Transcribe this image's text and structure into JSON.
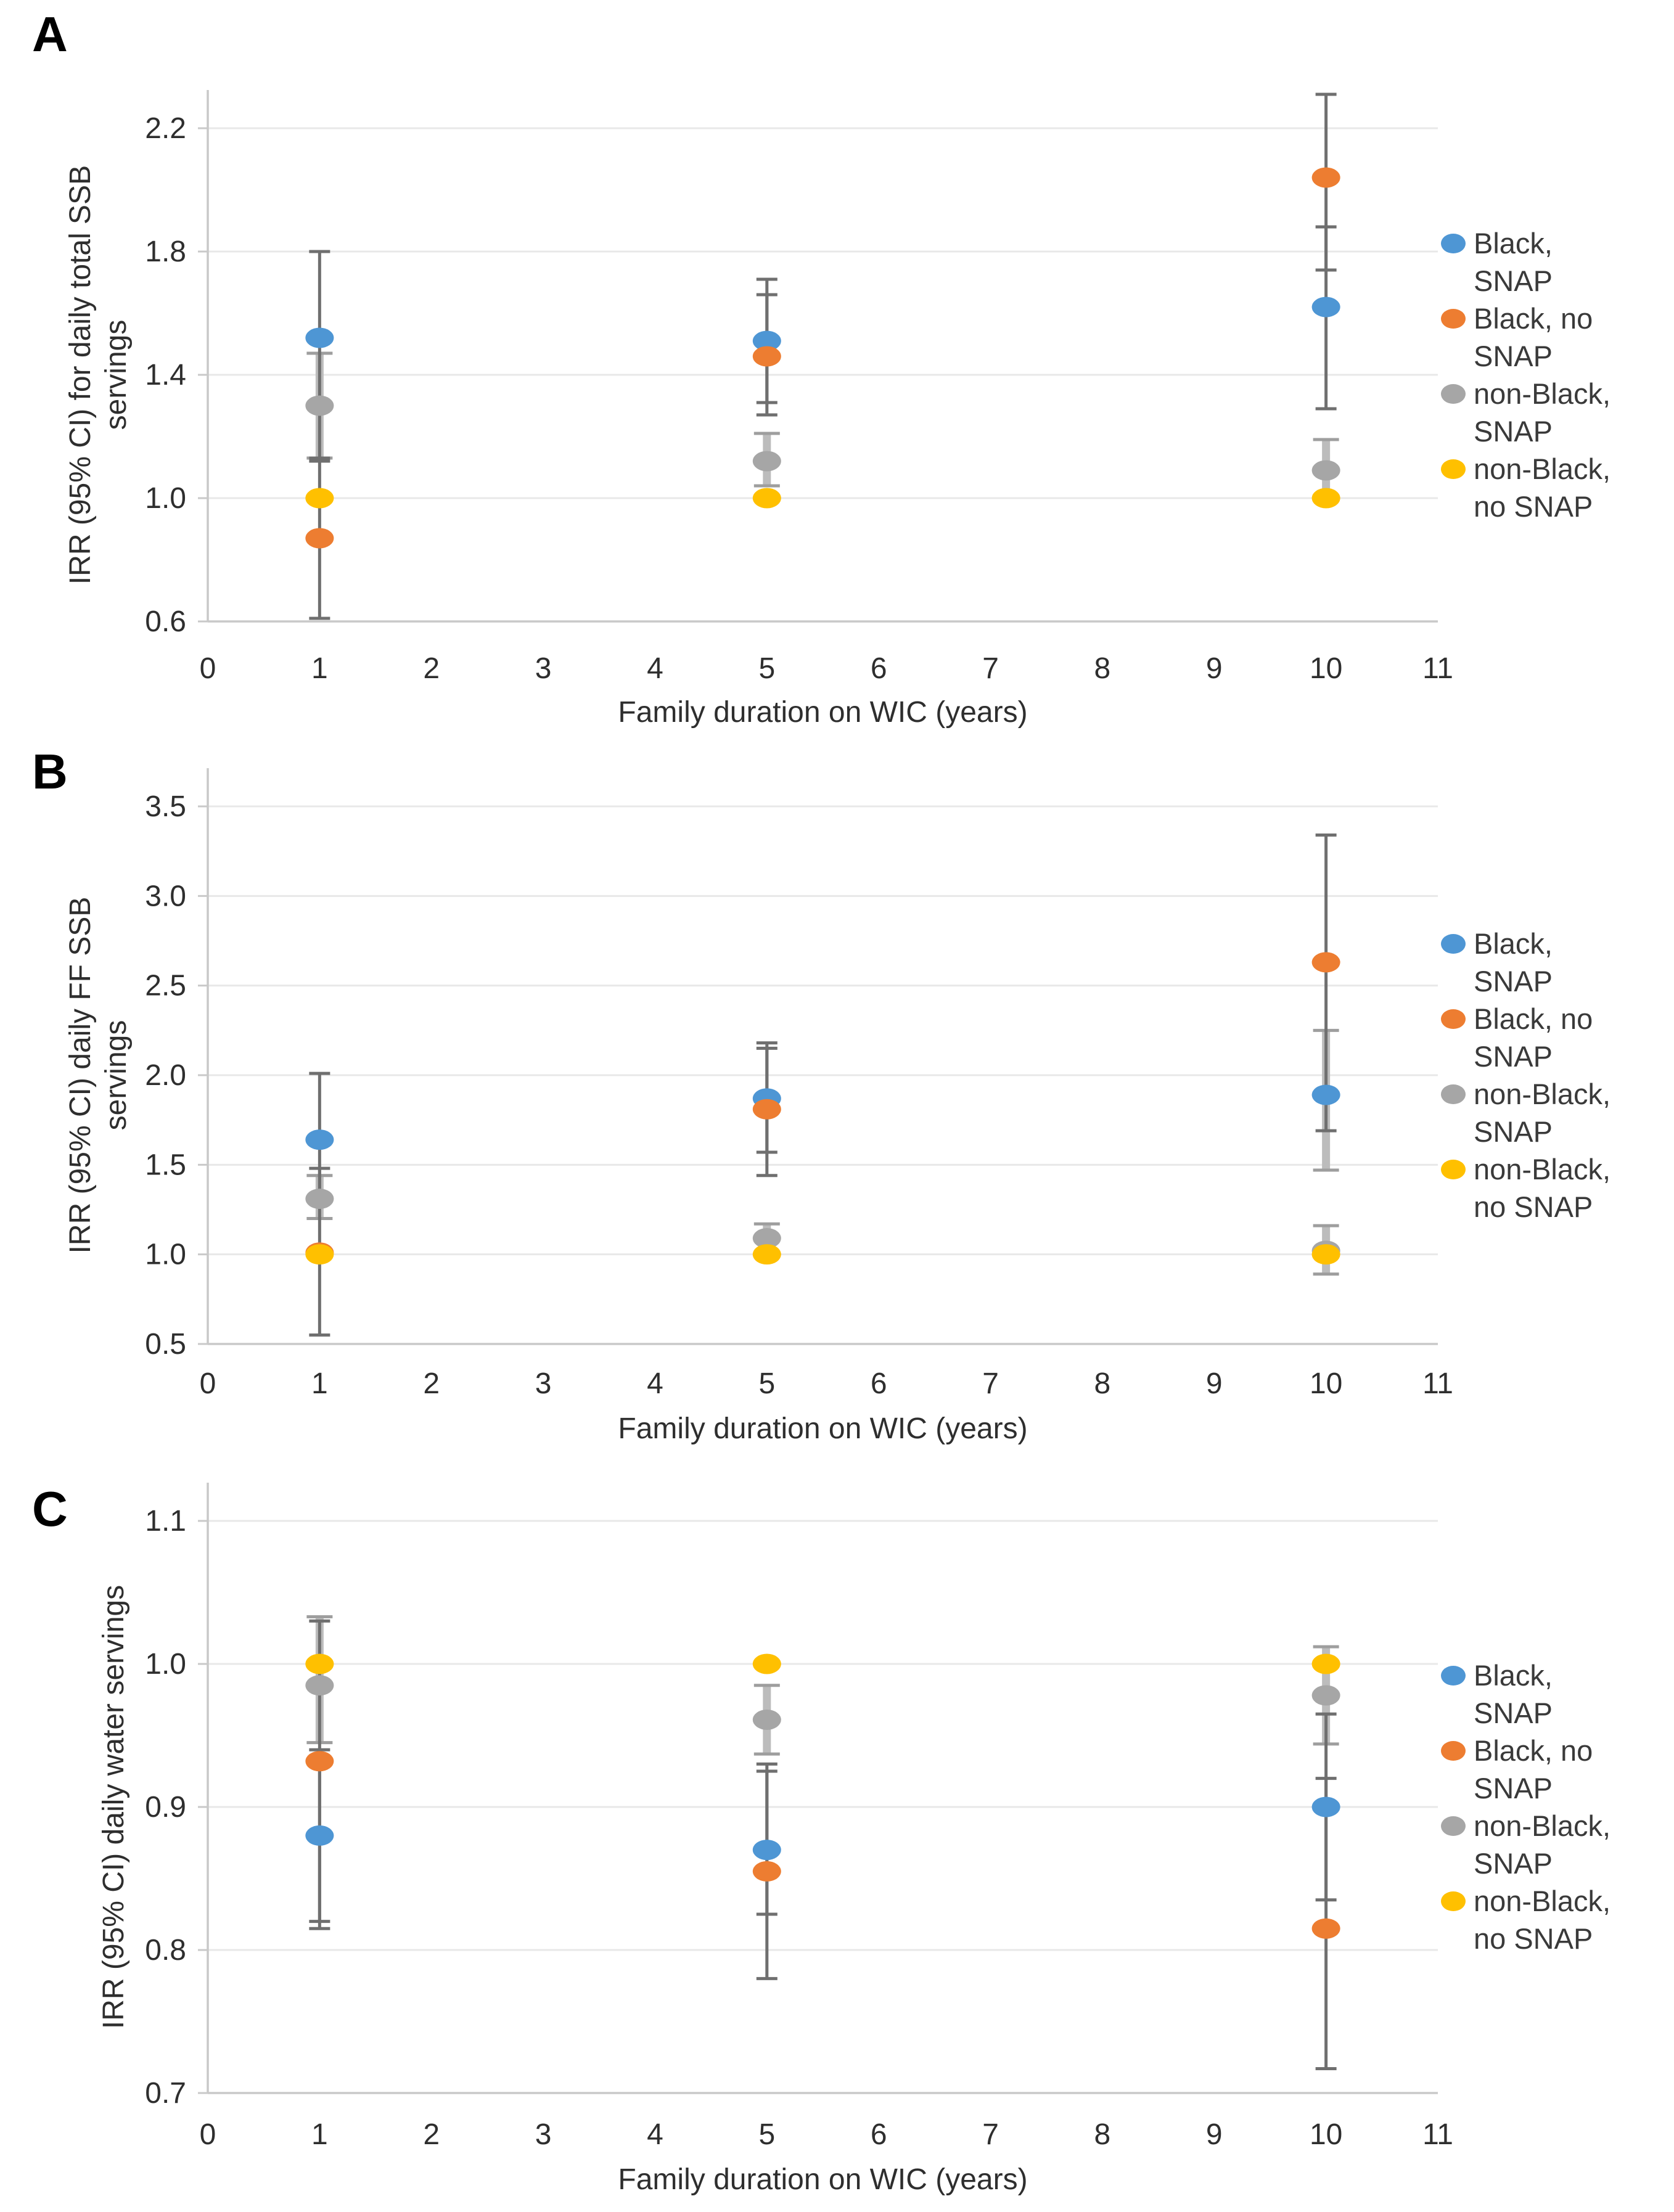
{
  "figure": {
    "x_axis_title": "Family duration on WIC (years)",
    "x_tick_labels": [
      "0",
      "1",
      "2",
      "3",
      "4",
      "5",
      "6",
      "7",
      "8",
      "9",
      "10",
      "11"
    ],
    "style_colors": {
      "grid": "#e8e8e8",
      "axis": "#c9c9c9",
      "tick_mark": "#c9c9c9",
      "error_dark": "#6f6f6f",
      "error_light": "#bcbcbc",
      "error_light_cap": "#9e9e9e",
      "text": "#2e2e2e"
    },
    "legend": {
      "entries": [
        {
          "name": "Black, SNAP",
          "color": "#4e96d4",
          "lines": [
            "Black,",
            "SNAP"
          ]
        },
        {
          "name": "Black, no SNAP",
          "color": "#ed7d31",
          "lines": [
            "Black, no",
            "SNAP"
          ]
        },
        {
          "name": "non-Black, SNAP",
          "color": "#a6a6a6",
          "lines": [
            "non-Black,",
            "SNAP"
          ]
        },
        {
          "name": "non-Black, no SNAP",
          "color": "#ffc000",
          "lines": [
            "non-Black,",
            "no SNAP"
          ]
        }
      ]
    }
  },
  "chart_data": [
    {
      "type": "scatter",
      "panel_label": "A",
      "ylabel": "IRR (95% CI) for daily total SSB servings",
      "xlabel": "Family duration on WIC (years)",
      "xlim": [
        0,
        11
      ],
      "ylim": [
        0.6,
        2.2
      ],
      "y_tick_labels": [
        "0.6",
        "1.0",
        "1.4",
        "1.8",
        "2.2"
      ],
      "y_ticks": [
        0.6,
        1.0,
        1.4,
        1.8,
        2.2
      ],
      "x_points": [
        1,
        5,
        10
      ],
      "series": [
        {
          "name": "Black, SNAP",
          "color": "#4e96d4",
          "ci_style": "thin",
          "points": [
            {
              "x": 1,
              "y": 1.52,
              "lo": 1.13,
              "hi": 1.8
            },
            {
              "x": 5,
              "y": 1.51,
              "lo": 1.31,
              "hi": 1.71
            },
            {
              "x": 10,
              "y": 1.62,
              "lo": 1.29,
              "hi": 1.88
            }
          ]
        },
        {
          "name": "Black, no SNAP",
          "color": "#ed7d31",
          "ci_style": "thin",
          "points": [
            {
              "x": 1,
              "y": 0.87,
              "lo": 0.61,
              "hi": 1.12
            },
            {
              "x": 5,
              "y": 1.46,
              "lo": 1.27,
              "hi": 1.66
            },
            {
              "x": 10,
              "y": 2.04,
              "lo": 1.74,
              "hi": 2.31
            }
          ]
        },
        {
          "name": "non-Black, SNAP",
          "color": "#a6a6a6",
          "ci_style": "thick",
          "points": [
            {
              "x": 1,
              "y": 1.3,
              "lo": 1.13,
              "hi": 1.47
            },
            {
              "x": 5,
              "y": 1.12,
              "lo": 1.04,
              "hi": 1.21
            },
            {
              "x": 10,
              "y": 1.09,
              "lo": 1.0,
              "hi": 1.19
            }
          ]
        },
        {
          "name": "non-Black, no SNAP",
          "color": "#ffc000",
          "ci_style": "none",
          "points": [
            {
              "x": 1,
              "y": 1.0
            },
            {
              "x": 5,
              "y": 1.0
            },
            {
              "x": 10,
              "y": 1.0
            }
          ]
        }
      ]
    },
    {
      "type": "scatter",
      "panel_label": "B",
      "ylabel": "IRR (95% CI) daily FF SSB servings",
      "xlabel": "Family duration on WIC (years)",
      "xlim": [
        0,
        11
      ],
      "ylim": [
        0.5,
        3.5
      ],
      "y_tick_labels": [
        "0.5",
        "1.0",
        "1.5",
        "2.0",
        "2.5",
        "3.0",
        "3.5"
      ],
      "y_ticks": [
        0.5,
        1.0,
        1.5,
        2.0,
        2.5,
        3.0,
        3.5
      ],
      "x_points": [
        1,
        5,
        10
      ],
      "series": [
        {
          "name": "Black, SNAP",
          "color": "#4e96d4",
          "ci_style": "thin",
          "points": [
            {
              "x": 1,
              "y": 1.64,
              "lo": 1.34,
              "hi": 2.01
            },
            {
              "x": 5,
              "y": 1.87,
              "lo": 1.57,
              "hi": 2.18
            },
            {
              "x": 10,
              "y": 1.89,
              "lo": 1.47,
              "hi": 2.25,
              "thick": true
            }
          ]
        },
        {
          "name": "Black, no SNAP",
          "color": "#ed7d31",
          "ci_style": "thin",
          "points": [
            {
              "x": 1,
              "y": 1.01,
              "lo": 0.55,
              "hi": 1.48
            },
            {
              "x": 5,
              "y": 1.81,
              "lo": 1.44,
              "hi": 2.15
            },
            {
              "x": 10,
              "y": 2.63,
              "lo": 1.69,
              "hi": 3.34
            }
          ]
        },
        {
          "name": "non-Black, SNAP",
          "color": "#a6a6a6",
          "ci_style": "thick",
          "points": [
            {
              "x": 1,
              "y": 1.31,
              "lo": 1.2,
              "hi": 1.44
            },
            {
              "x": 5,
              "y": 1.09,
              "lo": 1.01,
              "hi": 1.17
            },
            {
              "x": 10,
              "y": 1.02,
              "lo": 0.89,
              "hi": 1.16
            }
          ]
        },
        {
          "name": "non-Black, no SNAP",
          "color": "#ffc000",
          "ci_style": "none",
          "points": [
            {
              "x": 1,
              "y": 1.0
            },
            {
              "x": 5,
              "y": 1.0
            },
            {
              "x": 10,
              "y": 1.0
            }
          ]
        }
      ]
    },
    {
      "type": "scatter",
      "panel_label": "C",
      "ylabel": "IRR (95% CI) daily water servings",
      "xlabel": "Family duration on WIC (years)",
      "xlim": [
        0,
        11
      ],
      "ylim": [
        0.7,
        1.1
      ],
      "y_tick_labels": [
        "0.7",
        "0.8",
        "0.9",
        "1.0",
        "1.1"
      ],
      "y_ticks": [
        0.7,
        0.8,
        0.9,
        1.0,
        1.1
      ],
      "x_points": [
        1,
        5,
        10
      ],
      "series": [
        {
          "name": "Black, SNAP",
          "color": "#4e96d4",
          "ci_style": "thin",
          "points": [
            {
              "x": 1,
              "y": 0.88,
              "lo": 0.82,
              "hi": 0.94
            },
            {
              "x": 5,
              "y": 0.87,
              "lo": 0.825,
              "hi": 0.925
            },
            {
              "x": 10,
              "y": 0.9,
              "lo": 0.835,
              "hi": 0.965
            }
          ]
        },
        {
          "name": "Black, no SNAP",
          "color": "#ed7d31",
          "ci_style": "thin",
          "points": [
            {
              "x": 1,
              "y": 0.932,
              "lo": 0.815,
              "hi": 1.03
            },
            {
              "x": 5,
              "y": 0.855,
              "lo": 0.78,
              "hi": 0.93
            },
            {
              "x": 10,
              "y": 0.815,
              "lo": 0.717,
              "hi": 0.92
            }
          ]
        },
        {
          "name": "non-Black, SNAP",
          "color": "#a6a6a6",
          "ci_style": "thick",
          "points": [
            {
              "x": 1,
              "y": 0.985,
              "lo": 0.945,
              "hi": 1.033
            },
            {
              "x": 5,
              "y": 0.961,
              "lo": 0.937,
              "hi": 0.985
            },
            {
              "x": 10,
              "y": 0.978,
              "lo": 0.944,
              "hi": 1.012
            }
          ]
        },
        {
          "name": "non-Black, no SNAP",
          "color": "#ffc000",
          "ci_style": "none",
          "points": [
            {
              "x": 1,
              "y": 1.0
            },
            {
              "x": 5,
              "y": 1.0
            },
            {
              "x": 10,
              "y": 1.0
            }
          ]
        }
      ]
    }
  ]
}
